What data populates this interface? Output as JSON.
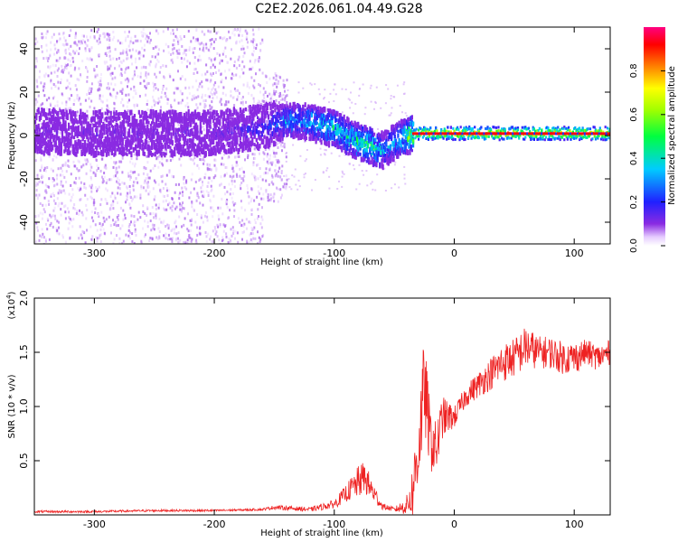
{
  "title": "C2E2.2026.061.04.49.G28",
  "chart_data": [
    {
      "type": "heatmap",
      "xlabel": "Height of straight line (km)",
      "ylabel": "Frequency (Hz)",
      "xlim": [
        -350,
        130
      ],
      "ylim": [
        -50,
        50
      ],
      "xticks": [
        -300,
        -200,
        -100,
        0,
        100
      ],
      "yticks": [
        -40,
        -20,
        0,
        20,
        40
      ],
      "colorbar": {
        "label": "Normalized spectral amplitude",
        "range": [
          0.0,
          1.0
        ],
        "ticks": [
          0.0,
          0.2,
          0.4,
          0.6,
          0.8
        ]
      },
      "ridge": {
        "description_x_km": [
          -350,
          -300,
          -250,
          -200,
          -160,
          -140,
          -120,
          -100,
          -85,
          -70,
          -60,
          -50,
          -40,
          -30,
          0,
          50,
          100,
          130
        ],
        "center_hz": [
          2,
          1,
          1,
          1,
          4,
          7,
          6,
          3,
          -2,
          -5,
          -7,
          -3,
          0,
          1,
          1,
          1,
          1,
          1
        ],
        "peak_amplitude": [
          0.12,
          0.12,
          0.12,
          0.13,
          0.2,
          0.35,
          0.4,
          0.45,
          0.5,
          0.55,
          0.35,
          0.4,
          0.6,
          0.9,
          0.95,
          0.95,
          0.95,
          0.95
        ]
      }
    },
    {
      "type": "line",
      "xlabel": "Height of straight line (km)",
      "ylabel": "SNR (10 * v/v)",
      "yscale_label": "(x10",
      "yscale_exp": "4",
      "xlim": [
        -350,
        130
      ],
      "ylim": [
        0,
        2.0
      ],
      "xticks": [
        -300,
        -200,
        -100,
        0,
        100
      ],
      "yticks": [
        0.5,
        1.0,
        1.5,
        2.0
      ],
      "ytick_labels": [
        "0.5",
        "1.0",
        "1.5",
        "2.0"
      ],
      "color": "#ee2222",
      "x": [
        -350,
        -300,
        -250,
        -200,
        -160,
        -150,
        -120,
        -100,
        -90,
        -80,
        -75,
        -70,
        -60,
        -50,
        -40,
        -35,
        -30,
        -25,
        -20,
        -15,
        -10,
        0,
        10,
        20,
        30,
        40,
        50,
        60,
        70,
        80,
        90,
        100,
        110,
        120,
        130
      ],
      "y": [
        0.03,
        0.03,
        0.04,
        0.04,
        0.05,
        0.07,
        0.05,
        0.1,
        0.2,
        0.3,
        0.35,
        0.25,
        0.08,
        0.05,
        0.08,
        0.2,
        0.6,
        1.2,
        0.7,
        0.6,
        0.9,
        0.9,
        1.1,
        1.2,
        1.3,
        1.4,
        1.45,
        1.55,
        1.5,
        1.5,
        1.45,
        1.45,
        1.5,
        1.45,
        1.5
      ],
      "noise_amplitude": [
        0.01,
        0.01,
        0.01,
        0.01,
        0.01,
        0.02,
        0.02,
        0.04,
        0.08,
        0.15,
        0.15,
        0.12,
        0.03,
        0.02,
        0.08,
        0.25,
        0.4,
        0.45,
        0.3,
        0.25,
        0.2,
        0.1,
        0.1,
        0.12,
        0.15,
        0.18,
        0.18,
        0.2,
        0.15,
        0.15,
        0.15,
        0.15,
        0.12,
        0.12,
        0.12
      ]
    }
  ]
}
